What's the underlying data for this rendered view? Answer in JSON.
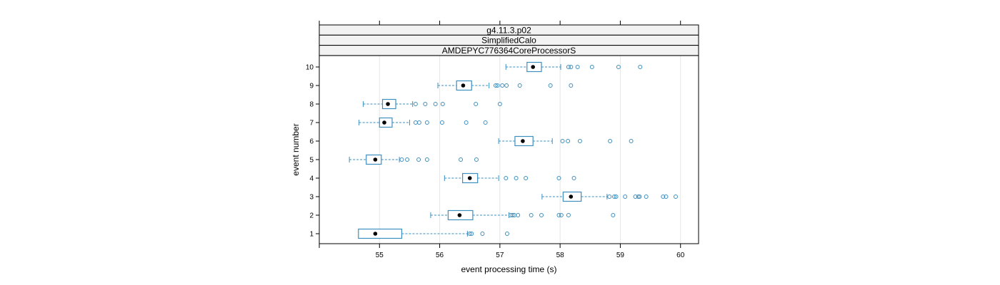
{
  "chart_data": {
    "type": "boxplot",
    "orientation": "horizontal",
    "strips": [
      "g4.11.3.p02",
      "SimplifiedCalo",
      "AMDEPYC776364CoreProcessorS"
    ],
    "xlabel": "event processing time (s)",
    "ylabel": "event number",
    "xlim": [
      54.0,
      60.3
    ],
    "x_ticks": [
      55,
      56,
      57,
      58,
      59,
      60
    ],
    "x_tick_labels": [
      "55",
      "56",
      "57",
      "58",
      "59",
      "60"
    ],
    "grid": true,
    "colors": {
      "box": "#3d8fbf",
      "median": "#000000",
      "grid": "#e6e6e6",
      "strip": "#f2f2f2"
    },
    "groups": [
      {
        "label": "1",
        "lower": 55.28,
        "q1": 54.65,
        "median": 54.93,
        "q3": 55.37,
        "upper": 56.46,
        "outliers": [
          56.5,
          56.53,
          56.71,
          57.12
        ]
      },
      {
        "label": "2",
        "lower": 55.85,
        "q1": 56.14,
        "median": 56.33,
        "q3": 56.55,
        "upper": 57.15,
        "outliers": [
          57.18,
          57.21,
          57.24,
          57.3,
          57.52,
          57.69,
          57.98,
          58.02,
          58.14,
          58.88
        ]
      },
      {
        "label": "3",
        "lower": 57.7,
        "q1": 58.05,
        "median": 58.18,
        "q3": 58.35,
        "upper": 58.78,
        "outliers": [
          58.82,
          58.9,
          58.93,
          59.08,
          59.25,
          59.3,
          59.32,
          59.43,
          59.71,
          59.76,
          59.92
        ]
      },
      {
        "label": "4",
        "lower": 56.08,
        "q1": 56.38,
        "median": 56.5,
        "q3": 56.63,
        "upper": 56.98,
        "outliers": [
          57.1,
          57.27,
          57.43,
          57.98,
          58.23
        ]
      },
      {
        "label": "5",
        "lower": 54.5,
        "q1": 54.78,
        "median": 54.93,
        "q3": 55.03,
        "upper": 55.33,
        "outliers": [
          55.37,
          55.46,
          55.65,
          55.79,
          56.35,
          56.61
        ]
      },
      {
        "label": "6",
        "lower": 56.98,
        "q1": 57.25,
        "median": 57.38,
        "q3": 57.55,
        "upper": 57.87,
        "outliers": [
          58.04,
          58.13,
          58.33,
          58.83,
          59.18
        ]
      },
      {
        "label": "7",
        "lower": 54.66,
        "q1": 55.0,
        "median": 55.08,
        "q3": 55.21,
        "upper": 55.5,
        "outliers": [
          55.6,
          55.66,
          55.79,
          56.04,
          56.44,
          56.76
        ]
      },
      {
        "label": "8",
        "lower": 54.73,
        "q1": 55.05,
        "median": 55.14,
        "q3": 55.27,
        "upper": 55.55,
        "outliers": [
          55.6,
          55.76,
          55.93,
          56.05,
          56.6,
          57.0
        ]
      },
      {
        "label": "9",
        "lower": 55.97,
        "q1": 56.28,
        "median": 56.39,
        "q3": 56.53,
        "upper": 56.82,
        "outliers": [
          56.93,
          56.96,
          57.04,
          57.11,
          57.33,
          57.84,
          58.18
        ]
      },
      {
        "label": "10",
        "lower": 57.1,
        "q1": 57.45,
        "median": 57.55,
        "q3": 57.69,
        "upper": 58.01,
        "outliers": [
          58.14,
          58.18,
          58.29,
          58.53,
          58.97,
          59.33
        ]
      }
    ]
  }
}
